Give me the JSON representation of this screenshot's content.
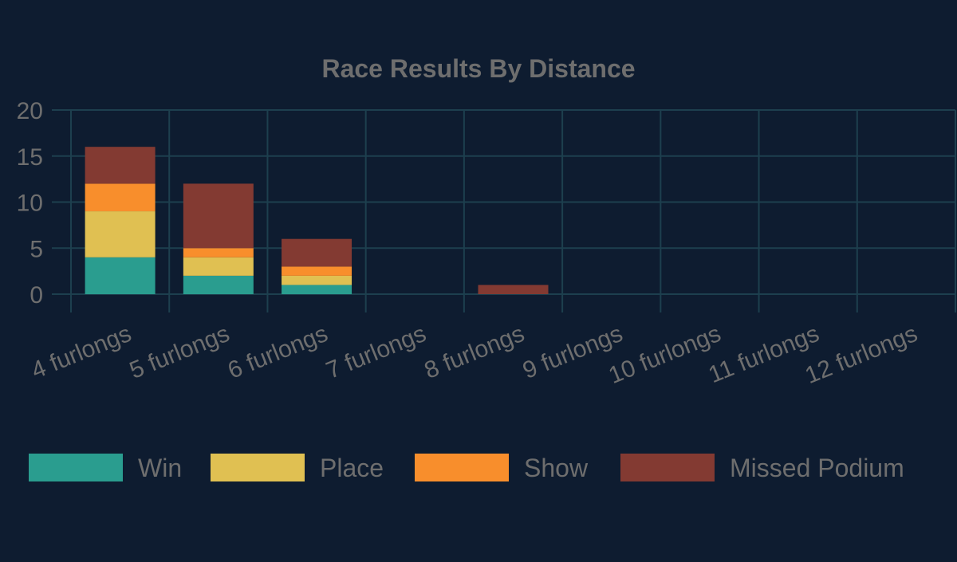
{
  "chart_data": {
    "type": "bar",
    "stacked": true,
    "title": "Race Results By Distance",
    "xlabel": "",
    "ylabel": "",
    "categories": [
      "4 furlongs",
      "5 furlongs",
      "6 furlongs",
      "7 furlongs",
      "8 furlongs",
      "9 furlongs",
      "10 furlongs",
      "11 furlongs",
      "12 furlongs"
    ],
    "series": [
      {
        "name": "Win",
        "color": "#2a9d8f",
        "values": [
          4,
          2,
          1,
          0,
          0,
          0,
          0,
          0,
          0
        ]
      },
      {
        "name": "Place",
        "color": "#e0c052",
        "values": [
          5,
          2,
          1,
          0,
          0,
          0,
          0,
          0,
          0
        ]
      },
      {
        "name": "Show",
        "color": "#f88e2c",
        "values": [
          3,
          1,
          1,
          0,
          0,
          0,
          0,
          0,
          0
        ]
      },
      {
        "name": "Missed Podium",
        "color": "#833a32",
        "values": [
          4,
          7,
          3,
          0,
          1,
          0,
          0,
          0,
          0
        ]
      }
    ],
    "ylim": [
      0,
      20
    ],
    "yticks": [
      "0",
      "5",
      "10",
      "15",
      "20"
    ],
    "grid": true,
    "legend": "bottom"
  }
}
